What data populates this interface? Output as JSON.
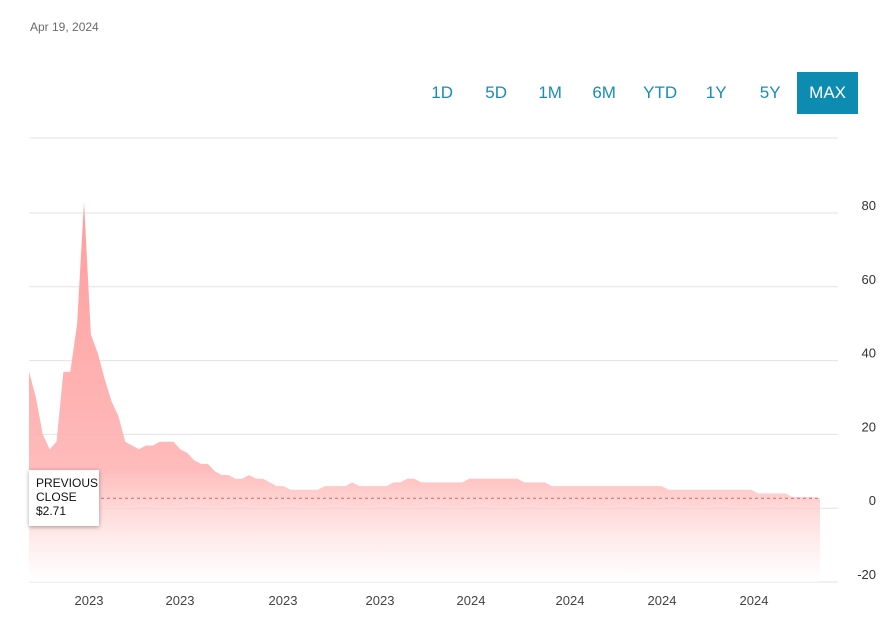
{
  "header": {
    "date": "Apr 19, 2024"
  },
  "ranges": [
    {
      "label": "1D",
      "active": false
    },
    {
      "label": "5D",
      "active": false
    },
    {
      "label": "1M",
      "active": false
    },
    {
      "label": "6M",
      "active": false
    },
    {
      "label": "YTD",
      "active": false
    },
    {
      "label": "1Y",
      "active": false
    },
    {
      "label": "5Y",
      "active": false
    },
    {
      "label": "MAX",
      "active": true
    }
  ],
  "tooltip": {
    "line1": "PREVIOUS",
    "line2": "CLOSE",
    "line3": "$2.71"
  },
  "colors": {
    "area": "#ff9c9c",
    "accent": "#0d8bb0",
    "grid": "#e3e3e3",
    "dash": "#d46a6a"
  },
  "chart_data": {
    "type": "area",
    "ylim": [
      -20,
      80
    ],
    "yticks": [
      80,
      60,
      40,
      20,
      0,
      -20
    ],
    "xtick_labels": [
      "2023",
      "2023",
      "2023",
      "2023",
      "2024",
      "2024",
      "2024",
      "2024"
    ],
    "previous_close": 2.71,
    "series": [
      {
        "values": [
          37,
          30,
          20,
          16,
          18,
          37,
          37,
          50,
          83,
          47,
          42,
          35,
          29,
          25,
          18,
          17,
          16,
          17,
          17,
          18,
          18,
          18,
          16,
          15,
          13,
          12,
          12,
          10,
          9,
          9,
          8,
          8,
          9,
          8,
          8,
          7,
          6,
          6,
          5,
          5,
          5,
          5,
          5,
          6,
          6,
          6,
          6,
          7,
          6,
          6,
          6,
          6,
          6,
          7,
          7,
          8,
          8,
          7,
          7,
          7,
          7,
          7,
          7,
          7,
          8,
          8,
          8,
          8,
          8,
          8,
          8,
          8,
          7,
          7,
          7,
          7,
          6,
          6,
          6,
          6,
          6,
          6,
          6,
          6,
          6,
          6,
          6,
          6,
          6,
          6,
          6,
          6,
          6,
          5,
          5,
          5,
          5,
          5,
          5,
          5,
          5,
          5,
          5,
          5,
          5,
          5,
          4,
          4,
          4,
          4,
          4,
          3,
          3,
          3,
          3,
          2.71
        ]
      }
    ]
  }
}
